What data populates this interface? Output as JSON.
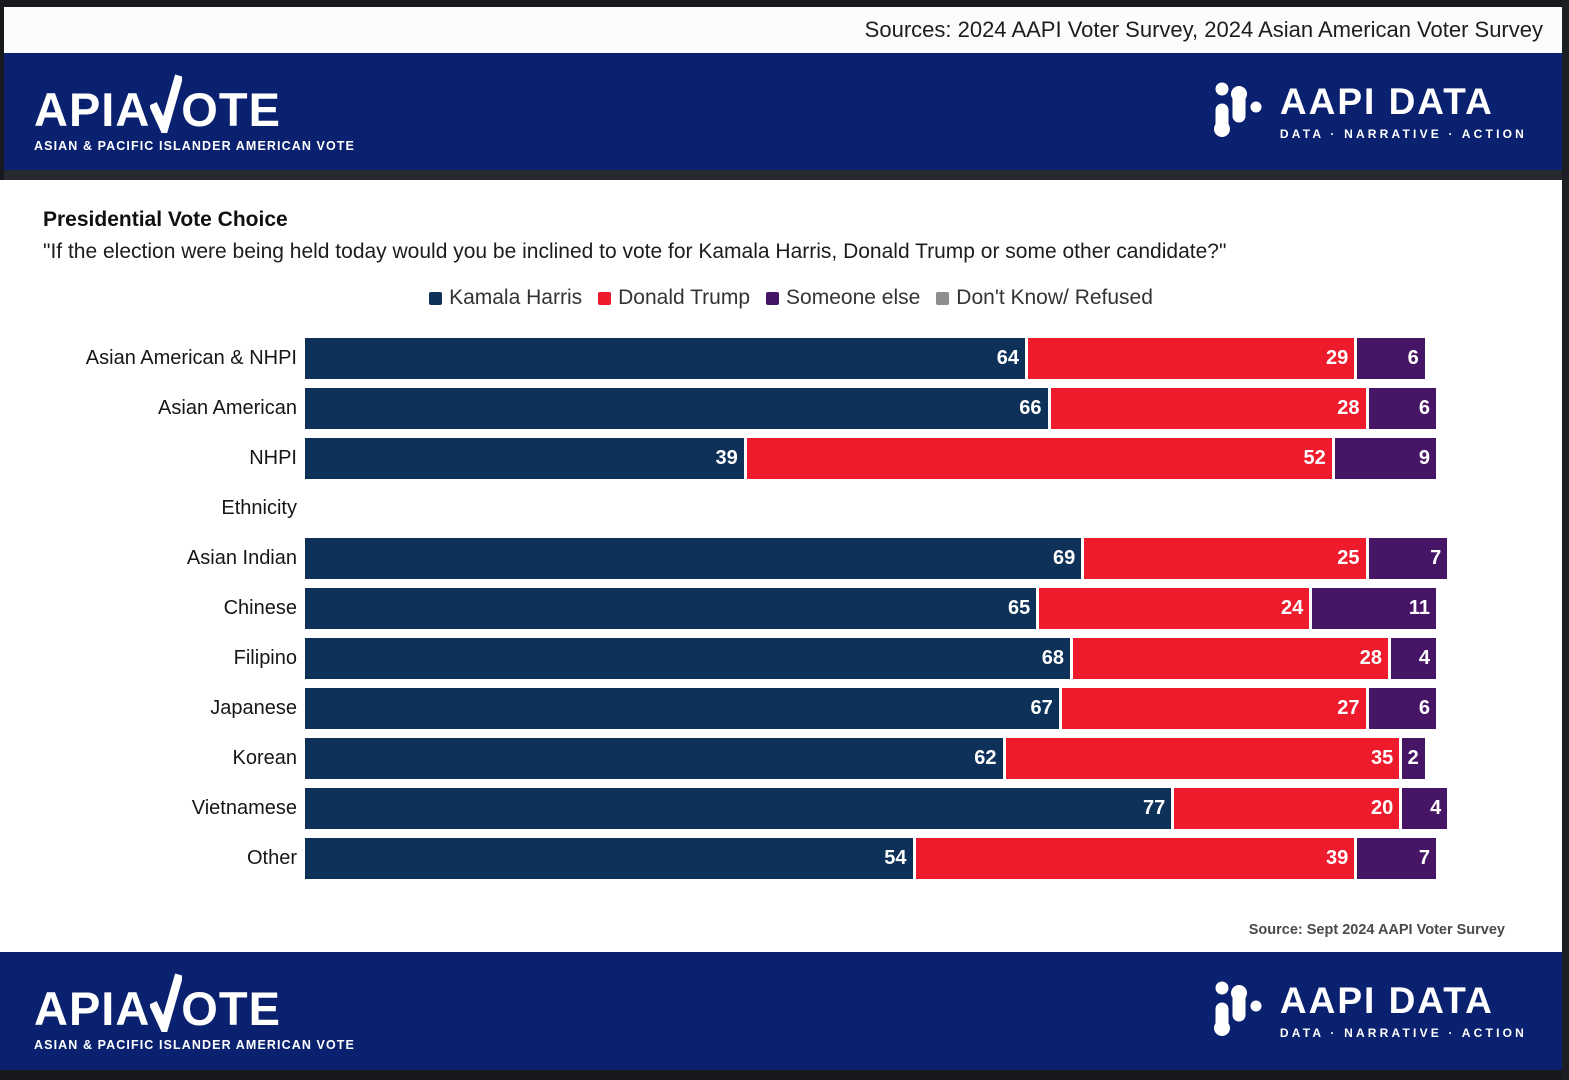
{
  "banner": {
    "sources_text": "Sources: 2024 AAPI Voter Survey, 2024 Asian American Voter Survey"
  },
  "brand": {
    "apiavote": {
      "text_before_check": "APIA",
      "text_after_check": "OTE",
      "tagline": "ASIAN & PACIFIC ISLANDER AMERICAN VOTE"
    },
    "aapi_data": {
      "name": "AAPI DATA",
      "tagline": "DATA · NARRATIVE · ACTION"
    }
  },
  "chart_data": {
    "type": "bar",
    "orientation": "horizontal_stacked",
    "title": "Presidential Vote Choice",
    "subtitle": "\"If the election were being held today would you be inclined to vote for Kamala Harris, Donald Trump or some other candidate?\"",
    "x_max": 100,
    "grid": false,
    "legend_position": "top-center",
    "legend": [
      {
        "label": "Kamala Harris",
        "color": "#0e3159"
      },
      {
        "label": "Donald Trump",
        "color": "#ee1b2c"
      },
      {
        "label": "Someone else",
        "color": "#471566"
      },
      {
        "label": "Don't Know/ Refused",
        "color": "#8e8e8e"
      }
    ],
    "rows": [
      {
        "label": "Asian American & NHPI",
        "values": [
          64,
          29,
          6
        ]
      },
      {
        "label": "Asian American",
        "values": [
          66,
          28,
          6
        ]
      },
      {
        "label": "NHPI",
        "values": [
          39,
          52,
          9
        ]
      },
      {
        "label": "Ethnicity",
        "values": null,
        "is_group_header": true
      },
      {
        "label": "Asian Indian",
        "values": [
          69,
          25,
          7
        ]
      },
      {
        "label": "Chinese",
        "values": [
          65,
          24,
          11
        ]
      },
      {
        "label": "Filipino",
        "values": [
          68,
          28,
          4
        ]
      },
      {
        "label": "Japanese",
        "values": [
          67,
          27,
          6
        ]
      },
      {
        "label": "Korean",
        "values": [
          62,
          35,
          2
        ]
      },
      {
        "label": "Vietnamese",
        "values": [
          77,
          20,
          4
        ]
      },
      {
        "label": "Other",
        "values": [
          54,
          39,
          7
        ]
      }
    ],
    "source_note": "Source: Sept 2024 AAPI Voter Survey"
  }
}
